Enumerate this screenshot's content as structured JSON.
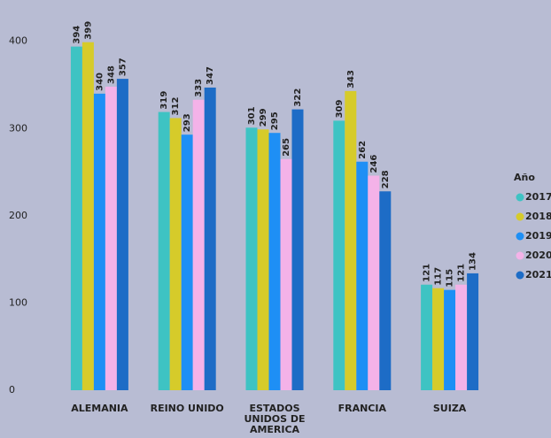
{
  "chart_data": {
    "type": "bar",
    "categories": [
      "ALEMANIA",
      "REINO UNIDO",
      "ESTADOS UNIDOS DE AMERICA",
      "FRANCIA",
      "SUIZA"
    ],
    "series": [
      {
        "name": "2017",
        "color": "#3ec3c3",
        "values": [
          394,
          319,
          301,
          309,
          121
        ]
      },
      {
        "name": "2018",
        "color": "#d6cb2a",
        "values": [
          399,
          312,
          299,
          343,
          117
        ]
      },
      {
        "name": "2019",
        "color": "#1e8ff5",
        "values": [
          340,
          293,
          295,
          262,
          115
        ]
      },
      {
        "name": "2020",
        "color": "#f4b2e8",
        "values": [
          348,
          333,
          265,
          246,
          121
        ]
      },
      {
        "name": "2021",
        "color": "#1d6cc6",
        "values": [
          357,
          347,
          322,
          228,
          134
        ]
      }
    ],
    "legend_title": "Año",
    "ylim": [
      0,
      420
    ],
    "yticks": [
      0,
      100,
      200,
      300,
      400
    ],
    "grid": false,
    "legend": "right"
  }
}
